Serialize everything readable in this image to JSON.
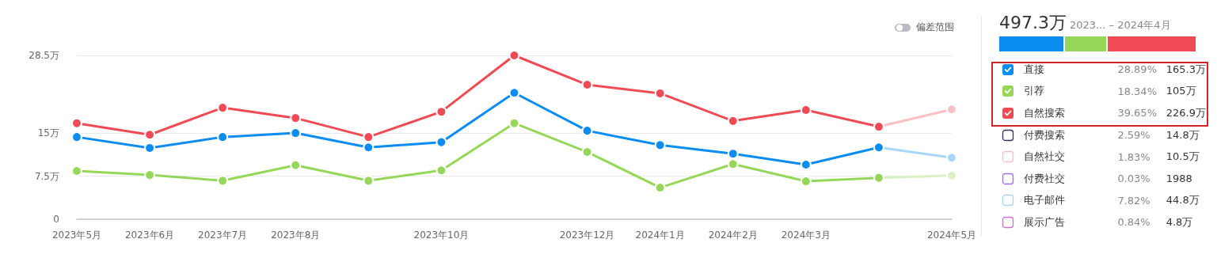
{
  "chart_data": [
    {
      "type": "line",
      "categories": [
        "2023年5月",
        "2023年6月",
        "2023年7月",
        "2023年8月",
        null,
        "2023年10月",
        null,
        "2023年12月",
        "2024年1月",
        "2024年2月",
        "2024年3月",
        null,
        "2024年5月"
      ],
      "series": [
        {
          "name": "直接",
          "color": "#0a8cf0",
          "values": [
            14.3,
            12.4,
            14.3,
            15.0,
            12.5,
            13.4,
            22.0,
            15.4,
            12.9,
            11.4,
            9.5,
            12.5,
            10.7
          ]
        },
        {
          "name": "引荐",
          "color": "#96d75a",
          "values": [
            8.4,
            7.7,
            6.7,
            9.4,
            6.7,
            8.5,
            16.7,
            11.7,
            5.5,
            9.6,
            6.6,
            7.2,
            7.6
          ]
        },
        {
          "name": "自然搜索",
          "color": "#f04b55",
          "values": [
            16.7,
            14.7,
            19.4,
            17.6,
            14.3,
            18.7,
            28.5,
            23.4,
            21.9,
            17.1,
            19.0,
            16.1,
            19.1
          ]
        }
      ],
      "ylim": [
        0,
        28.5
      ],
      "yticks": [
        {
          "value": 0,
          "label": "0"
        },
        {
          "value": 7.5,
          "label": "7.5万"
        },
        {
          "value": 15,
          "label": "15万"
        },
        {
          "value": 28.5,
          "label": "28.5万"
        }
      ],
      "grid": "y",
      "marker": "circle",
      "line_style": "solid",
      "annotations": [
        "偏差范围"
      ]
    },
    {
      "type": "other",
      "title": "497.3万",
      "subtitle": "2023... – 2024年4月",
      "categories": [
        null,
        null,
        null,
        "付费搜索",
        "自然社交",
        "付费社交",
        "电子邮件",
        "展示广告"
      ],
      "values": [
        28.89,
        18.34,
        39.65,
        2.59,
        1.83,
        0.03,
        7.82,
        0.84
      ],
      "value_labels": [
        "28.89%",
        "18.34%",
        "39.65%",
        "2.59%",
        "1.83%",
        "0.03%",
        "7.82%",
        "0.84%"
      ],
      "colors": [
        "#0a8cf0",
        "#96d75a",
        "#f04b55",
        "#3c2a5a",
        "#f5c0c8",
        "#a070e0",
        "#a8d4f0",
        "#d070d0"
      ],
      "annotations": [
        "165.3万",
        "105万",
        "226.9万",
        "14.8万",
        "10.5万",
        "1988",
        "44.8万",
        "4.8万"
      ]
    }
  ]
}
